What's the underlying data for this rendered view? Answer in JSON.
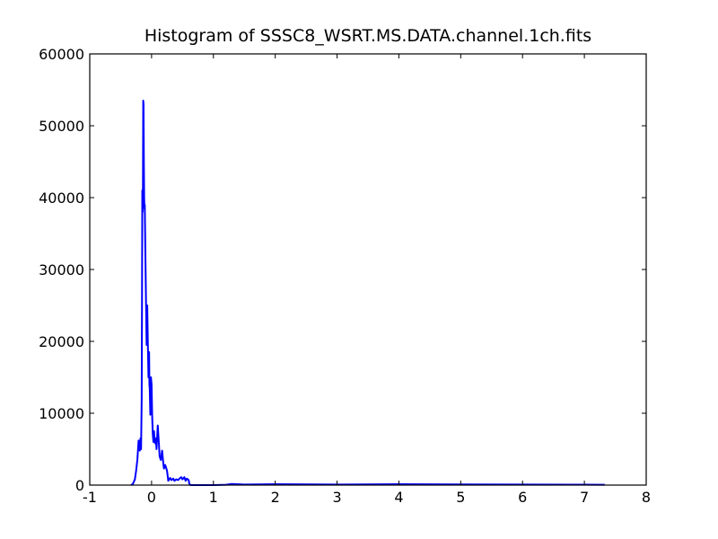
{
  "chart_data": {
    "type": "line",
    "title": "Histogram of SSSC8_WSRT.MS.DATA.channel.1ch.fits",
    "xlabel": "",
    "ylabel": "",
    "xlim": [
      -1,
      8
    ],
    "ylim": [
      0,
      60000
    ],
    "x_ticks": [
      -1,
      0,
      1,
      2,
      3,
      4,
      5,
      6,
      7,
      8
    ],
    "y_ticks": [
      0,
      10000,
      20000,
      30000,
      40000,
      50000,
      60000
    ],
    "x_tick_labels": [
      "-1",
      "0",
      "1",
      "2",
      "3",
      "4",
      "5",
      "6",
      "7",
      "8"
    ],
    "y_tick_labels": [
      "0",
      "10000",
      "20000",
      "30000",
      "40000",
      "50000",
      "60000"
    ],
    "grid": false,
    "line_color": "#0000ff",
    "series": [
      {
        "x": [
          -0.33,
          -0.3,
          -0.27,
          -0.25,
          -0.23,
          -0.21,
          -0.2,
          -0.19,
          -0.18,
          -0.17,
          -0.16,
          -0.155,
          -0.15,
          -0.145,
          -0.14,
          -0.135,
          -0.13,
          -0.125,
          -0.12,
          -0.115,
          -0.11,
          -0.1,
          -0.09,
          -0.08,
          -0.075,
          -0.07,
          -0.06,
          -0.05,
          -0.045,
          -0.04,
          -0.035,
          -0.03,
          -0.02,
          -0.01,
          0.0,
          0.01,
          0.02,
          0.03,
          0.04,
          0.05,
          0.06,
          0.07,
          0.08,
          0.1,
          0.12,
          0.13,
          0.15,
          0.17,
          0.19,
          0.2,
          0.22,
          0.25,
          0.27,
          0.3,
          0.32,
          0.35,
          0.37,
          0.4,
          0.43,
          0.45,
          0.48,
          0.5,
          0.53,
          0.55,
          0.57,
          0.6,
          0.61,
          0.63,
          0.65,
          0.8,
          1.0,
          1.2,
          1.3,
          1.5,
          2.0,
          3.0,
          4.0,
          5.0,
          6.0,
          7.0,
          7.33
        ],
        "y": [
          0,
          200,
          800,
          2000,
          3500,
          6200,
          5200,
          4800,
          6500,
          5000,
          12000,
          25000,
          41000,
          38000,
          40000,
          53500,
          53000,
          45000,
          40000,
          38500,
          39000,
          32000,
          25500,
          19500,
          24000,
          25000,
          19500,
          15000,
          16000,
          18500,
          14000,
          13500,
          9800,
          15000,
          14000,
          9500,
          7000,
          6000,
          7500,
          6000,
          5800,
          6500,
          5000,
          8300,
          5500,
          4000,
          3500,
          4800,
          3000,
          2300,
          2800,
          2000,
          600,
          1000,
          700,
          900,
          600,
          800,
          700,
          900,
          1100,
          800,
          1100,
          600,
          900,
          700,
          200,
          0,
          0,
          0,
          0,
          50,
          150,
          80,
          120,
          80,
          120,
          100,
          80,
          60,
          40
        ]
      }
    ]
  }
}
